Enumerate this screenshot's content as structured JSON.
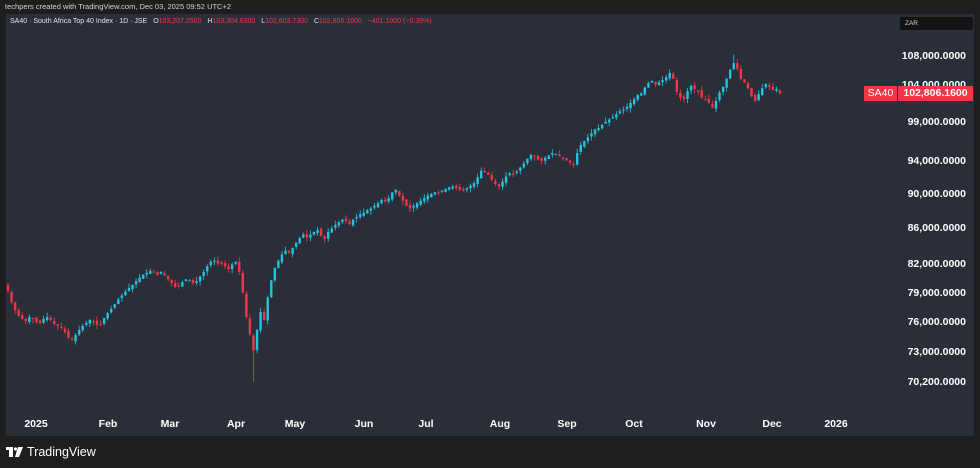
{
  "header": {
    "credit": "techpers created with TradingView.com, Dec 03, 2025 09:52 UTC+2",
    "symbol_title": "SA40 · South Africa Top 40 Index · 1D · JSE",
    "ohlc": {
      "o_label": "O",
      "o": "103,207.2500",
      "h_label": "H",
      "h": "103,304.6300",
      "l_label": "L",
      "l": "102,603.7300",
      "c_label": "C",
      "c": "102,806.1600",
      "change": "−401.1000 (−0.39%)"
    },
    "currency": "ZAR"
  },
  "price_scale": {
    "last_symbol": "SA40",
    "last_price": "102,806.1600",
    "ticks": [
      "108,000.0000",
      "104,000.0000",
      "99,000.0000",
      "94,000.0000",
      "90,000.0000",
      "86,000.0000",
      "82,000.0000",
      "79,000.0000",
      "76,000.0000",
      "73,000.0000",
      "70,200.0000"
    ]
  },
  "time_scale": {
    "ticks": [
      "2025",
      "Feb",
      "Mar",
      "Apr",
      "May",
      "Jun",
      "Jul",
      "Aug",
      "Sep",
      "Oct",
      "Nov",
      "Dec",
      "2026"
    ]
  },
  "footer": {
    "brand": "TradingView"
  },
  "colors": {
    "up": "#22c4e0",
    "down": "#f23645",
    "background": "#2a2e39",
    "frame": "#1e1e1f"
  },
  "chart_data": {
    "type": "candlestick",
    "title": "SA40 - South Africa Top 40 Index - 1D - JSE",
    "xlabel": "",
    "ylabel": "ZAR",
    "scale": "log",
    "ylim": [
      69000,
      110000
    ],
    "x_ticks": [
      "2025",
      "Feb",
      "Mar",
      "Apr",
      "May",
      "Jun",
      "Jul",
      "Aug",
      "Sep",
      "Oct",
      "Nov",
      "Dec",
      "2026"
    ],
    "y_ticks": [
      108000,
      104000,
      99000,
      94000,
      90000,
      86000,
      82000,
      79000,
      76000,
      73000,
      70200
    ],
    "last": {
      "open": 103207.25,
      "high": 103304.63,
      "low": 102603.73,
      "close": 102806.16,
      "change": -401.1,
      "change_pct": -0.39
    },
    "closes": [
      79200,
      78000,
      77200,
      76600,
      76300,
      76100,
      76500,
      76300,
      76000,
      75900,
      76300,
      76500,
      76200,
      75800,
      75600,
      75400,
      75000,
      74400,
      74200,
      74700,
      75200,
      75600,
      75900,
      76200,
      76000,
      75700,
      75800,
      76400,
      76900,
      77300,
      77800,
      78300,
      78700,
      79100,
      79500,
      79800,
      80200,
      80600,
      80900,
      81100,
      81300,
      81200,
      80900,
      81200,
      80800,
      80400,
      80000,
      79600,
      79700,
      80100,
      80400,
      80300,
      80000,
      80200,
      80700,
      81200,
      81800,
      82300,
      82400,
      82100,
      82000,
      81800,
      81500,
      82000,
      82300,
      81200,
      79000,
      76500,
      74800,
      73200,
      75200,
      77000,
      76200,
      78500,
      80300,
      81600,
      82400,
      83100,
      83500,
      83300,
      83800,
      84400,
      84900,
      85300,
      85000,
      85300,
      85600,
      85800,
      85200,
      84800,
      85600,
      86000,
      86400,
      86700,
      87000,
      86800,
      86500,
      87000,
      87300,
      87600,
      87800,
      88100,
      88300,
      88600,
      88900,
      89300,
      89100,
      89500,
      90200,
      90500,
      89800,
      89200,
      88600,
      88300,
      88600,
      88900,
      89200,
      89500,
      89800,
      90000,
      90200,
      90100,
      90400,
      90600,
      90800,
      90900,
      90700,
      90500,
      90400,
      90700,
      91000,
      91300,
      92000,
      92800,
      92600,
      92300,
      91700,
      91200,
      90900,
      91500,
      92100,
      92500,
      92400,
      92700,
      93200,
      93700,
      94300,
      94800,
      94600,
      94200,
      94000,
      94400,
      94700,
      95000,
      94900,
      94600,
      94300,
      94100,
      93800,
      93500,
      95000,
      96000,
      96500,
      97000,
      97500,
      98000,
      98200,
      98600,
      99000,
      99300,
      99600,
      100000,
      100400,
      100600,
      101000,
      101500,
      102000,
      102600,
      102800,
      103600,
      104200,
      104500,
      104000,
      104300,
      104600,
      105000,
      105600,
      104800,
      103000,
      102200,
      102000,
      103100,
      103800,
      103400,
      103000,
      102200,
      102000,
      101500,
      100900,
      101800,
      102900,
      103700,
      104800,
      106100,
      107000,
      106200,
      104800,
      104300,
      103500,
      102400,
      101800,
      102700,
      103500,
      104100,
      103700,
      103300,
      103400,
      102806.16
    ]
  }
}
